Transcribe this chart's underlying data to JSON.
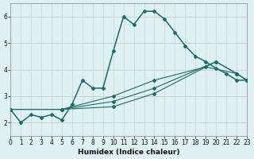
{
  "xlabel": "Humidex (Indice chaleur)",
  "bg_color": "#dff0f0",
  "grid_color_main": "#c8dada",
  "grid_color_red": "#e8a8a8",
  "line_color": "#1a6b6b",
  "xlim": [
    0,
    23
  ],
  "ylim": [
    1.5,
    6.5
  ],
  "xticks": [
    0,
    1,
    2,
    3,
    4,
    5,
    6,
    7,
    8,
    9,
    10,
    11,
    12,
    13,
    14,
    15,
    16,
    17,
    18,
    19,
    20,
    21,
    22,
    23
  ],
  "yticks": [
    2,
    3,
    4,
    5,
    6
  ],
  "series": [
    {
      "x": [
        0,
        1,
        2,
        3,
        4,
        5,
        6,
        7,
        8,
        9,
        10,
        11,
        12,
        13,
        14,
        15,
        16,
        17,
        18,
        19,
        20,
        21,
        22,
        23
      ],
      "y": [
        2.5,
        2.0,
        2.3,
        2.2,
        2.3,
        2.1,
        2.7,
        3.6,
        3.3,
        3.3,
        4.7,
        6.0,
        5.7,
        6.2,
        6.2,
        5.9,
        5.4,
        4.9,
        4.5,
        4.3,
        4.05,
        3.85,
        3.6,
        3.6
      ]
    },
    {
      "x": [
        0,
        5,
        10,
        14,
        19,
        22,
        23
      ],
      "y": [
        2.5,
        2.5,
        3.0,
        3.6,
        4.1,
        3.85,
        3.6
      ]
    },
    {
      "x": [
        0,
        5,
        10,
        14,
        20,
        22,
        23
      ],
      "y": [
        2.5,
        2.5,
        2.8,
        3.3,
        4.3,
        3.85,
        3.6
      ]
    },
    {
      "x": [
        0,
        5,
        10,
        14,
        20,
        22,
        23
      ],
      "y": [
        2.5,
        2.5,
        2.6,
        3.1,
        4.3,
        3.85,
        3.6
      ]
    }
  ]
}
